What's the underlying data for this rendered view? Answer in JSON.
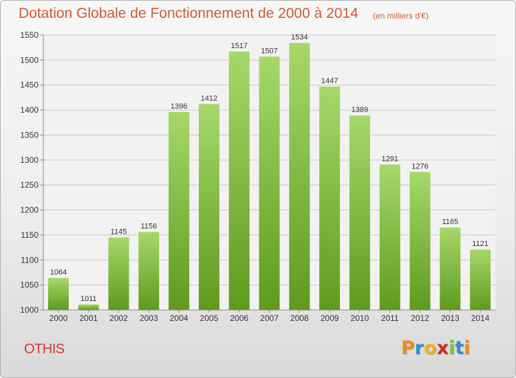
{
  "title": "Dotation Globale de Fonctionnement de 2000 à 2014",
  "subtitle": "(en milliers d'€)",
  "commune": "OTHIS",
  "logo": {
    "letters": [
      "P",
      "r",
      "o",
      "x",
      "i",
      "t",
      "i"
    ],
    "colors": [
      "#f08a1c",
      "#2a8fd6",
      "#f0b21c",
      "#d62a2a",
      "#7ac142",
      "#2a8fd6",
      "#f08a1c"
    ]
  },
  "colors": {
    "bar_light": "#a6d86a",
    "bar_dark": "#5f9a1e",
    "accent": "#d35a2a"
  },
  "chart_data": {
    "type": "bar",
    "categories": [
      "2000",
      "2001",
      "2002",
      "2003",
      "2004",
      "2005",
      "2006",
      "2007",
      "2008",
      "2009",
      "2010",
      "2011",
      "2012",
      "2013",
      "2014"
    ],
    "values": [
      1064,
      1011,
      1145,
      1156,
      1396,
      1412,
      1517,
      1507,
      1534,
      1447,
      1389,
      1291,
      1276,
      1165,
      1121
    ],
    "ylim": [
      1000,
      1550
    ],
    "yticks": [
      1000,
      1050,
      1100,
      1150,
      1200,
      1250,
      1300,
      1350,
      1400,
      1450,
      1500,
      1550
    ],
    "grid": true,
    "data_labels": true
  }
}
